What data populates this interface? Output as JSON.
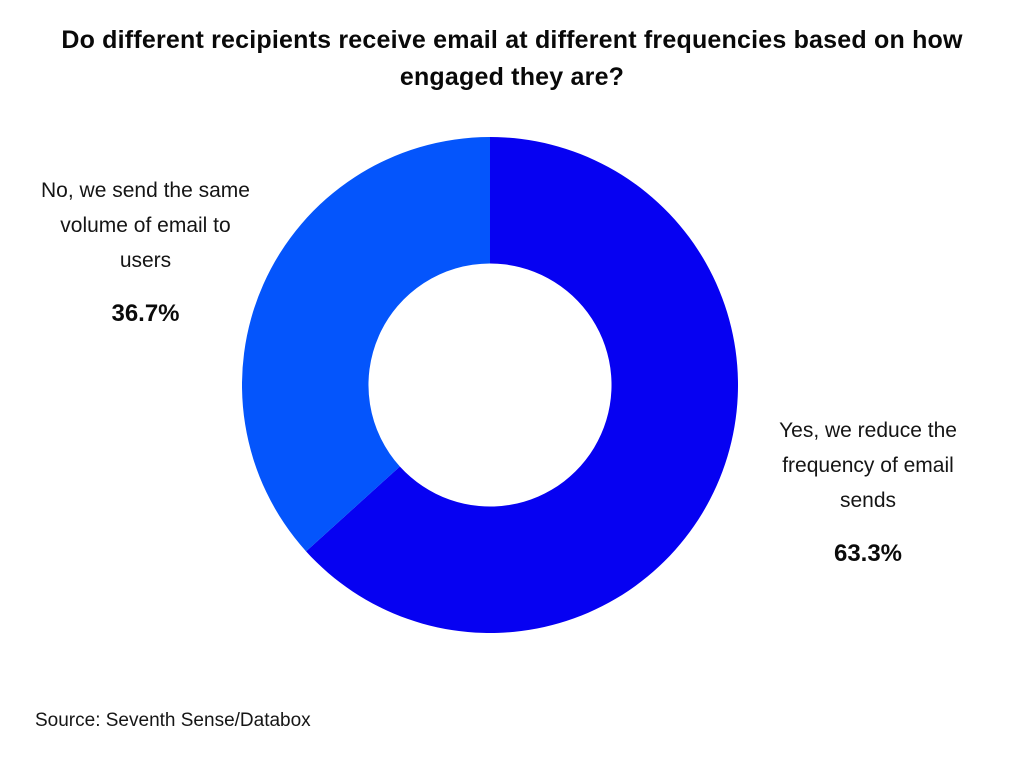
{
  "title": "Do different recipients receive email at different frequencies based on how engaged they are?",
  "source": "Source: Seventh Sense/Databox",
  "colors": {
    "slice_yes": "#0601F2",
    "slice_no": "#0455FC",
    "background": "#FFFFFF",
    "text": "#0B0B0B"
  },
  "chart_data": {
    "type": "pie",
    "donut": true,
    "inner_radius_ratio": 0.49,
    "start_angle_deg": 0,
    "direction": "clockwise",
    "title": "Do different recipients receive email at different frequencies based on how engaged they are?",
    "legend_position": "none",
    "labels_position": "outside",
    "slices": [
      {
        "label": "Yes, we reduce the frequency of email sends",
        "value": 63.3,
        "pct_label": "63.3%",
        "color": "#0601F2"
      },
      {
        "label": "No, we send the same volume of email to users",
        "value": 36.7,
        "pct_label": "36.7%",
        "color": "#0455FC"
      }
    ]
  }
}
